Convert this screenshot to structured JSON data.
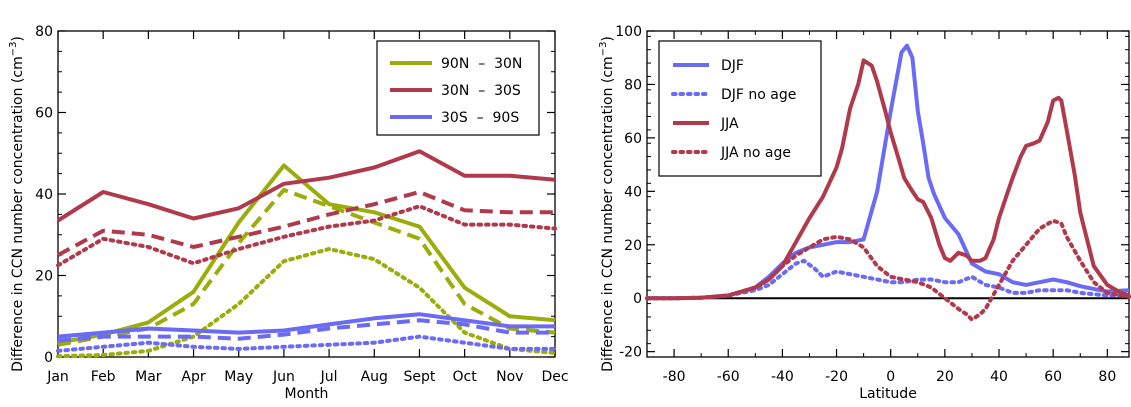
{
  "chart_data": [
    {
      "type": "line",
      "xlabel": "Month",
      "ylabel": "Difference in CCN number concentration (cm",
      "ylabel_sup": "−3",
      "ylabel_close": ")",
      "categories": [
        "Jan",
        "Feb",
        "Mar",
        "Apr",
        "May",
        "Jun",
        "Jul",
        "Aug",
        "Sept",
        "Oct",
        "Nov",
        "Dec"
      ],
      "ylim": [
        0,
        80
      ],
      "yticks": [
        0,
        20,
        40,
        60,
        80
      ],
      "legend_position": "top-right",
      "legend": [
        {
          "label": "90N  –  30N",
          "color": "#9aad0a"
        },
        {
          "label": "30N  –  30S",
          "color": "#b03a4c"
        },
        {
          "label": "30S  –  90S",
          "color": "#6a6af5"
        }
      ],
      "series": [
        {
          "legend_index": 0,
          "color": "#9aad0a",
          "style": "solid",
          "values": [
            3.5,
            5.5,
            8.5,
            16,
            33,
            47,
            37.5,
            35.5,
            32,
            17,
            10,
            9
          ]
        },
        {
          "legend_index": 0,
          "color": "#9aad0a",
          "style": "dashed",
          "values": [
            3,
            5,
            7,
            13,
            28,
            41,
            37,
            33,
            29,
            13,
            7,
            6
          ]
        },
        {
          "legend_index": 0,
          "color": "#9aad0a",
          "style": "dotted",
          "values": [
            0.2,
            0.5,
            1.5,
            5,
            13,
            23.5,
            26.5,
            24,
            17,
            6,
            2,
            1
          ]
        },
        {
          "legend_index": 1,
          "color": "#b03a4c",
          "style": "solid",
          "values": [
            33.5,
            40.5,
            37.5,
            34,
            36.5,
            42.5,
            44,
            46.5,
            50.5,
            44.5,
            44.5,
            43.5
          ]
        },
        {
          "legend_index": 1,
          "color": "#b03a4c",
          "style": "dashed",
          "values": [
            25,
            31,
            30,
            27,
            29.5,
            32,
            35,
            37.5,
            40.5,
            36,
            35.5,
            35.5
          ]
        },
        {
          "legend_index": 1,
          "color": "#b03a4c",
          "style": "dotted",
          "values": [
            22.5,
            29,
            27,
            23,
            26.5,
            29.5,
            32,
            33.5,
            37,
            32.5,
            32.5,
            31.5
          ]
        },
        {
          "legend_index": 2,
          "color": "#6a6af5",
          "style": "solid",
          "values": [
            5,
            6,
            7,
            6.5,
            6,
            6.5,
            8,
            9.5,
            10.5,
            9,
            7.5,
            7.5
          ]
        },
        {
          "legend_index": 2,
          "color": "#6a6af5",
          "style": "dashed",
          "values": [
            4,
            5,
            5,
            5,
            4.5,
            5.5,
            7,
            8,
            9,
            8,
            6,
            6
          ]
        },
        {
          "legend_index": 2,
          "color": "#6a6af5",
          "style": "dotted",
          "values": [
            1.5,
            2.5,
            3.5,
            2.5,
            2,
            2.5,
            3,
            3.5,
            5,
            3.5,
            2,
            2
          ]
        }
      ]
    },
    {
      "type": "line",
      "xlabel": "Latitude",
      "ylabel": "Difference in CCN number concentration (cm",
      "ylabel_sup": "−3",
      "ylabel_close": ")",
      "xlim": [
        -90,
        88
      ],
      "xticks": [
        -80,
        -60,
        -40,
        -20,
        0,
        20,
        40,
        60,
        80
      ],
      "ylim": [
        -22,
        100
      ],
      "yticks": [
        -20,
        0,
        20,
        40,
        60,
        80,
        100
      ],
      "zero_line": true,
      "legend_position": "top-left",
      "legend": [
        {
          "label": "DJF",
          "color": "#6a6af5",
          "style": "solid"
        },
        {
          "label": "DJF no age",
          "color": "#6a6af5",
          "style": "dotted"
        },
        {
          "label": "JJA",
          "color": "#b03a4c",
          "style": "solid"
        },
        {
          "label": "JJA no age",
          "color": "#b03a4c",
          "style": "dotted"
        }
      ],
      "series": [
        {
          "legend_index": 0,
          "color": "#6a6af5",
          "style": "solid",
          "x": [
            -90,
            -80,
            -70,
            -60,
            -50,
            -45,
            -40,
            -35,
            -30,
            -25,
            -20,
            -15,
            -10,
            -5,
            0,
            4,
            6,
            8,
            10,
            12,
            14,
            16,
            20,
            25,
            30,
            35,
            40,
            45,
            50,
            55,
            60,
            65,
            70,
            75,
            80,
            88
          ],
          "y": [
            0,
            0,
            0.2,
            1,
            4,
            8,
            13,
            17,
            19,
            20,
            21,
            21,
            22,
            40,
            70,
            92,
            94.5,
            90,
            70,
            58,
            45,
            39,
            30,
            24,
            13,
            10,
            9,
            6,
            5,
            6,
            7,
            6,
            4.5,
            3.5,
            2.5,
            3
          ]
        },
        {
          "legend_index": 1,
          "color": "#6a6af5",
          "style": "dotted",
          "x": [
            -90,
            -80,
            -70,
            -60,
            -50,
            -45,
            -40,
            -35,
            -32,
            -28,
            -25,
            -20,
            -15,
            -10,
            -5,
            0,
            5,
            10,
            15,
            20,
            25,
            30,
            35,
            40,
            45,
            50,
            55,
            60,
            65,
            70,
            75,
            80,
            88
          ],
          "y": [
            0,
            0,
            0.2,
            1,
            3,
            5,
            9,
            13,
            14,
            11,
            8,
            10,
            9,
            8,
            7,
            6,
            6,
            7,
            7,
            6,
            6,
            8,
            5,
            4,
            2,
            2,
            3,
            3,
            3,
            2,
            1.5,
            1,
            1
          ]
        },
        {
          "legend_index": 2,
          "color": "#b03a4c",
          "style": "solid",
          "x": [
            -90,
            -80,
            -70,
            -60,
            -50,
            -45,
            -40,
            -35,
            -30,
            -25,
            -20,
            -18,
            -15,
            -12,
            -10,
            -7,
            -5,
            -2,
            0,
            3,
            5,
            8,
            10,
            12,
            15,
            18,
            20,
            22,
            25,
            28,
            30,
            33,
            35,
            38,
            40,
            43,
            45,
            48,
            50,
            53,
            55,
            58,
            60,
            62,
            63,
            65,
            68,
            70,
            73,
            75,
            80,
            85,
            88
          ],
          "y": [
            0,
            0,
            0.2,
            1,
            4,
            7,
            12,
            21,
            30,
            38,
            49,
            56,
            71,
            80,
            89,
            87,
            81,
            70,
            62,
            52,
            45,
            40,
            37,
            36,
            30,
            20,
            15,
            14,
            17,
            16,
            14,
            14,
            15,
            22,
            30,
            39,
            45,
            53,
            57,
            58,
            59,
            66,
            74,
            75,
            74,
            63,
            46,
            32,
            20,
            12,
            5,
            2,
            1
          ]
        },
        {
          "legend_index": 3,
          "color": "#b03a4c",
          "style": "dotted",
          "x": [
            -90,
            -80,
            -70,
            -60,
            -50,
            -45,
            -40,
            -35,
            -30,
            -25,
            -20,
            -15,
            -10,
            -5,
            0,
            5,
            10,
            15,
            20,
            25,
            28,
            30,
            33,
            35,
            40,
            45,
            50,
            55,
            60,
            63,
            65,
            70,
            75,
            80,
            88
          ],
          "y": [
            0,
            0,
            0.2,
            1,
            4,
            7,
            12,
            16,
            19,
            22,
            23,
            22,
            19,
            12,
            8,
            7,
            6,
            4,
            0,
            -4,
            -6,
            -8,
            -6,
            -4,
            5,
            14,
            20,
            26,
            29,
            28,
            23,
            14,
            6,
            2,
            0.5
          ]
        }
      ]
    }
  ]
}
